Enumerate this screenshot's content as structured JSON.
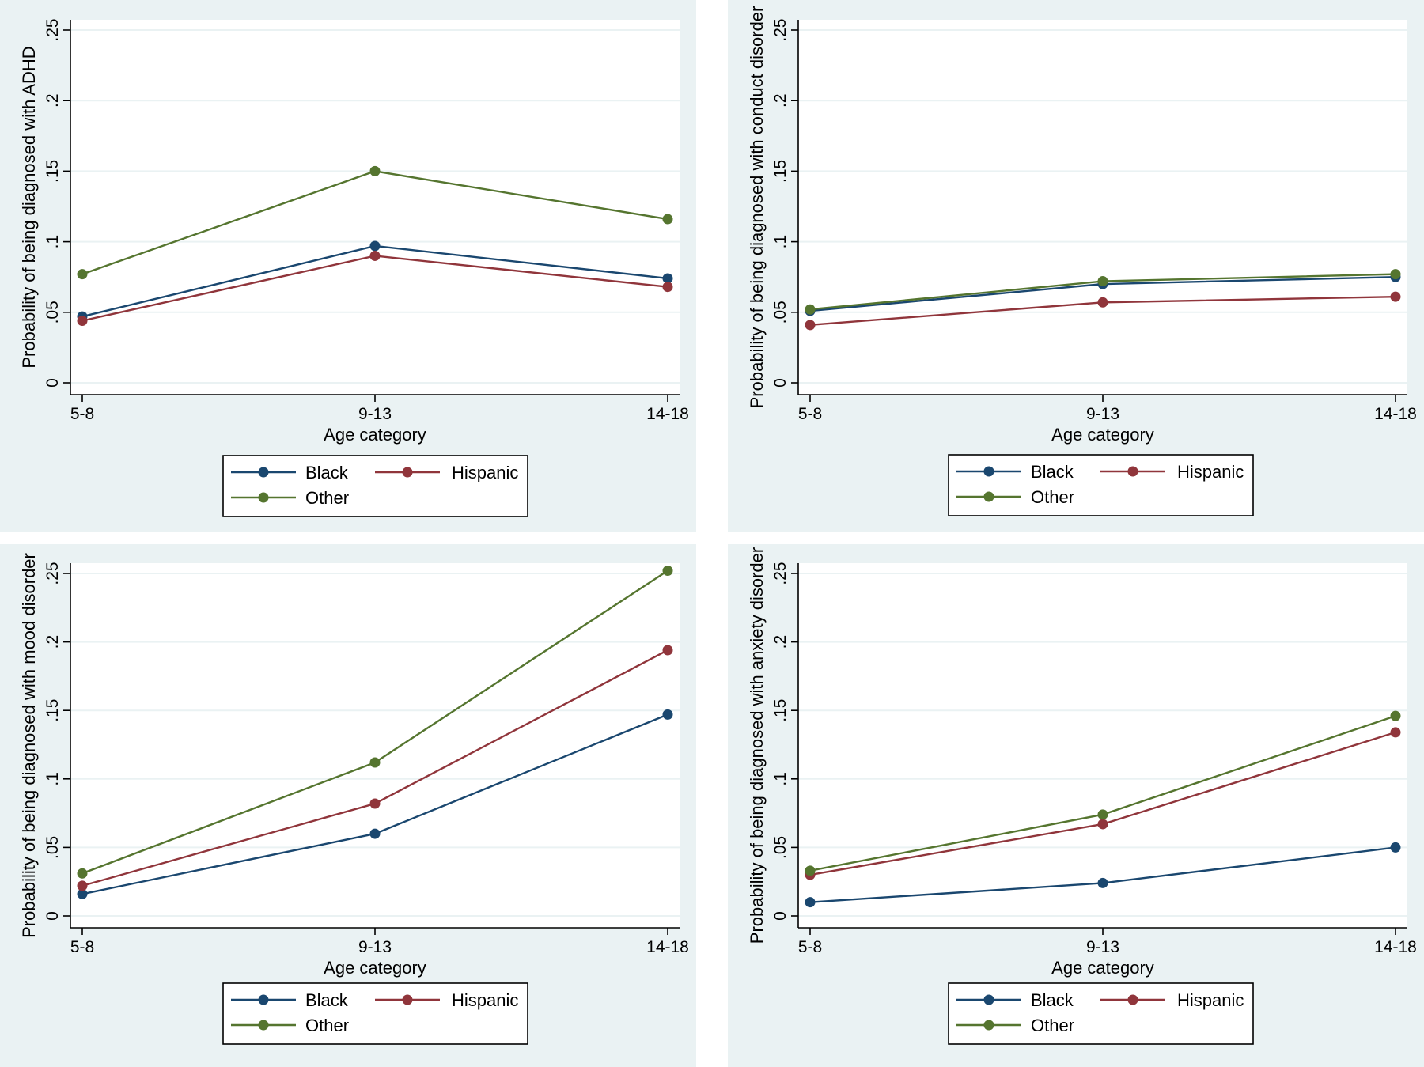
{
  "chart_data": [
    {
      "type": "line",
      "title": "",
      "xlabel": "Age category",
      "ylabel": "Probability of being diagnosed with ADHD",
      "categories": [
        "5-8",
        "9-13",
        "14-18"
      ],
      "yticks": [
        "0",
        ".05",
        ".1",
        ".15",
        ".2",
        ".25"
      ],
      "ylim": [
        0,
        0.25
      ],
      "grid": true,
      "legend": "bottom",
      "series": [
        {
          "name": "Black",
          "color": "#1a476f",
          "values": [
            0.047,
            0.097,
            0.074
          ]
        },
        {
          "name": "Hispanic",
          "color": "#90353b",
          "values": [
            0.044,
            0.09,
            0.068
          ]
        },
        {
          "name": "Other",
          "color": "#55752f",
          "values": [
            0.077,
            0.15,
            0.116
          ]
        }
      ]
    },
    {
      "type": "line",
      "title": "",
      "xlabel": "Age category",
      "ylabel": "Probability of being diagnosed with conduct disorder",
      "categories": [
        "5-8",
        "9-13",
        "14-18"
      ],
      "yticks": [
        "0",
        ".05",
        ".1",
        ".15",
        ".2",
        ".25"
      ],
      "ylim": [
        0,
        0.25
      ],
      "grid": true,
      "legend": "bottom",
      "series": [
        {
          "name": "Black",
          "color": "#1a476f",
          "values": [
            0.051,
            0.07,
            0.075
          ]
        },
        {
          "name": "Hispanic",
          "color": "#90353b",
          "values": [
            0.041,
            0.057,
            0.061
          ]
        },
        {
          "name": "Other",
          "color": "#55752f",
          "values": [
            0.052,
            0.072,
            0.077
          ]
        }
      ]
    },
    {
      "type": "line",
      "title": "",
      "xlabel": "Age category",
      "ylabel": "Probability of being diagnosed with mood disorder",
      "categories": [
        "5-8",
        "9-13",
        "14-18"
      ],
      "yticks": [
        "0",
        ".05",
        ".1",
        ".15",
        ".2",
        ".25"
      ],
      "ylim": [
        0,
        0.25
      ],
      "grid": true,
      "legend": "bottom",
      "series": [
        {
          "name": "Black",
          "color": "#1a476f",
          "values": [
            0.016,
            0.06,
            0.147
          ]
        },
        {
          "name": "Hispanic",
          "color": "#90353b",
          "values": [
            0.022,
            0.082,
            0.194
          ]
        },
        {
          "name": "Other",
          "color": "#55752f",
          "values": [
            0.031,
            0.112,
            0.252
          ]
        }
      ]
    },
    {
      "type": "line",
      "title": "",
      "xlabel": "Age category",
      "ylabel": "Probability of being diagnosed with anxiety disorder",
      "categories": [
        "5-8",
        "9-13",
        "14-18"
      ],
      "yticks": [
        "0",
        ".05",
        ".1",
        ".15",
        ".2",
        ".25"
      ],
      "ylim": [
        0,
        0.25
      ],
      "grid": true,
      "legend": "bottom",
      "series": [
        {
          "name": "Black",
          "color": "#1a476f",
          "values": [
            0.01,
            0.024,
            0.05
          ]
        },
        {
          "name": "Hispanic",
          "color": "#90353b",
          "values": [
            0.03,
            0.067,
            0.134
          ]
        },
        {
          "name": "Other",
          "color": "#55752f",
          "values": [
            0.033,
            0.074,
            0.146
          ]
        }
      ]
    }
  ]
}
